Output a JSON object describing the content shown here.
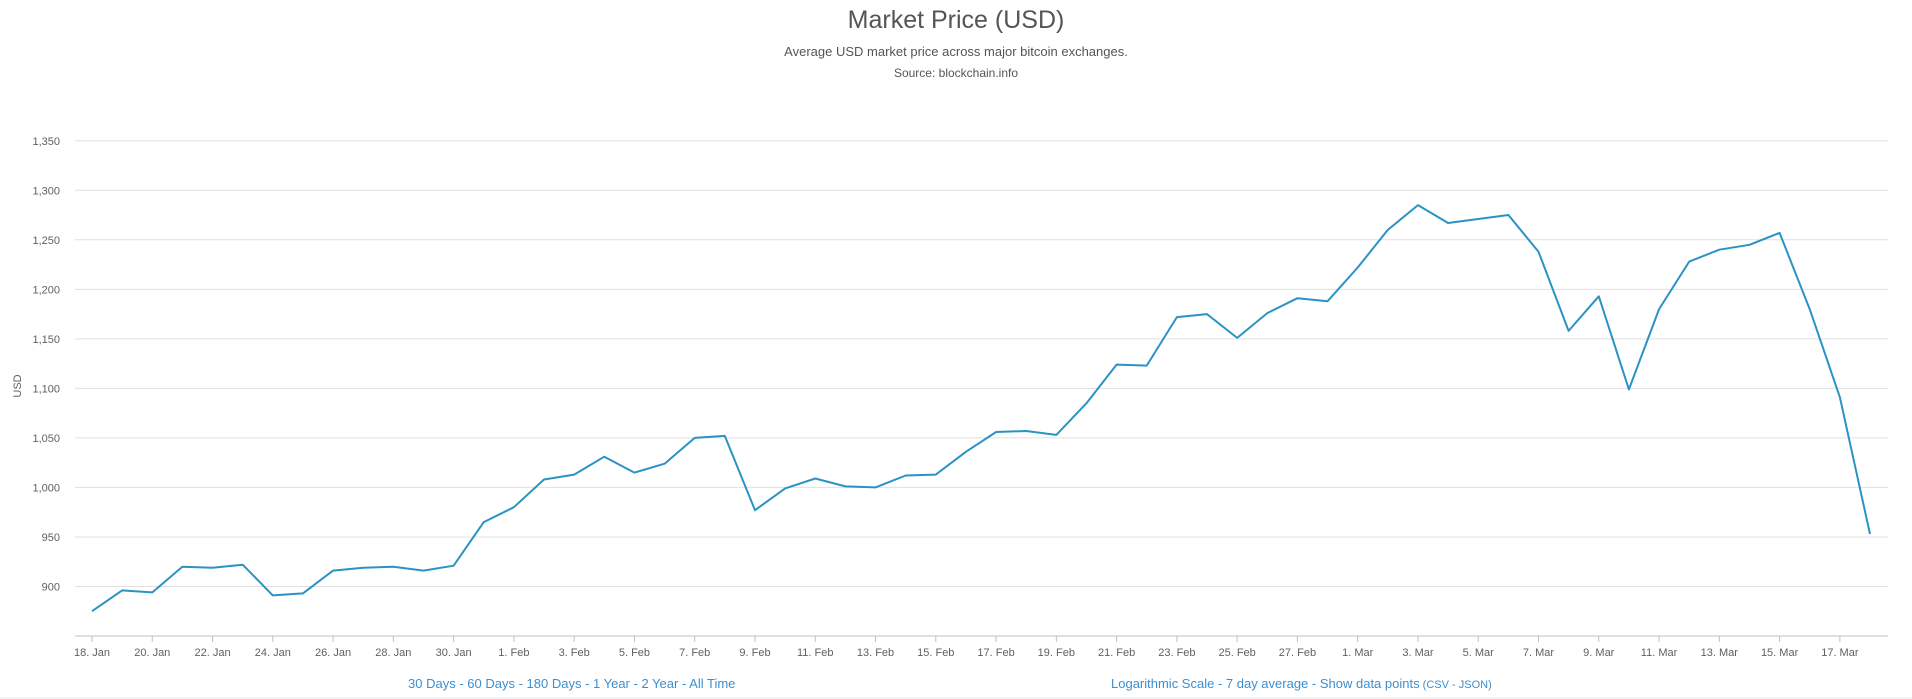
{
  "header": {
    "title": "Market Price (USD)",
    "subtitle": "Average USD market price across major bitcoin exchanges.",
    "source": "Source: blockchain.info"
  },
  "range_links": {
    "d30": "30 Days",
    "d60": "60 Days",
    "d180": "180 Days",
    "y1": "1 Year",
    "y2": "2 Year",
    "all": "All Time",
    "sep": " - "
  },
  "options_links": {
    "log": "Logarithmic Scale",
    "avg": "7 day average",
    "points": "Show data points",
    "csv": "CSV",
    "json": "JSON",
    "sep": " - ",
    "open_paren": " (",
    "close_paren": ")"
  },
  "colors": {
    "line": "#2a93c4",
    "grid": "#e0e0e0",
    "links": "#3b8fd1"
  },
  "chart_data": {
    "type": "line",
    "title": "Market Price (USD)",
    "subtitle": "Average USD market price across major bitcoin exchanges.",
    "ylabel": "USD",
    "xlabel": "",
    "ylim": [
      850,
      1375
    ],
    "grid": true,
    "yticks": [
      900,
      950,
      1000,
      1050,
      1100,
      1150,
      1200,
      1250,
      1300,
      1350
    ],
    "ytick_labels": [
      "900",
      "950",
      "1,000",
      "1,050",
      "1,100",
      "1,150",
      "1,200",
      "1,250",
      "1,300",
      "1,350"
    ],
    "xticks": [
      "2017-01-18",
      "2017-01-20",
      "2017-01-22",
      "2017-01-24",
      "2017-01-26",
      "2017-01-28",
      "2017-01-30",
      "2017-02-01",
      "2017-02-03",
      "2017-02-05",
      "2017-02-07",
      "2017-02-09",
      "2017-02-11",
      "2017-02-13",
      "2017-02-15",
      "2017-02-17",
      "2017-02-19",
      "2017-02-21",
      "2017-02-23",
      "2017-02-25",
      "2017-02-27",
      "2017-03-01",
      "2017-03-03",
      "2017-03-05",
      "2017-03-07",
      "2017-03-09",
      "2017-03-11",
      "2017-03-13",
      "2017-03-15",
      "2017-03-17"
    ],
    "xtick_labels": [
      "18. Jan",
      "20. Jan",
      "22. Jan",
      "24. Jan",
      "26. Jan",
      "28. Jan",
      "30. Jan",
      "1. Feb",
      "3. Feb",
      "5. Feb",
      "7. Feb",
      "9. Feb",
      "11. Feb",
      "13. Feb",
      "15. Feb",
      "17. Feb",
      "19. Feb",
      "21. Feb",
      "23. Feb",
      "25. Feb",
      "27. Feb",
      "1. Mar",
      "3. Mar",
      "5. Mar",
      "7. Mar",
      "9. Mar",
      "11. Mar",
      "13. Mar",
      "15. Mar",
      "17. Mar"
    ],
    "series": [
      {
        "x": [
          "2017-01-18",
          "2017-01-19",
          "2017-01-20",
          "2017-01-21",
          "2017-01-22",
          "2017-01-23",
          "2017-01-24",
          "2017-01-25",
          "2017-01-26",
          "2017-01-27",
          "2017-01-28",
          "2017-01-29",
          "2017-01-30",
          "2017-01-31",
          "2017-02-01",
          "2017-02-02",
          "2017-02-03",
          "2017-02-04",
          "2017-02-05",
          "2017-02-06",
          "2017-02-07",
          "2017-02-08",
          "2017-02-09",
          "2017-02-10",
          "2017-02-11",
          "2017-02-12",
          "2017-02-13",
          "2017-02-14",
          "2017-02-15",
          "2017-02-16",
          "2017-02-17",
          "2017-02-18",
          "2017-02-19",
          "2017-02-20",
          "2017-02-21",
          "2017-02-22",
          "2017-02-23",
          "2017-02-24",
          "2017-02-25",
          "2017-02-26",
          "2017-02-27",
          "2017-02-28",
          "2017-03-01",
          "2017-03-02",
          "2017-03-03",
          "2017-03-04",
          "2017-03-05",
          "2017-03-06",
          "2017-03-07",
          "2017-03-08",
          "2017-03-09",
          "2017-03-10",
          "2017-03-11",
          "2017-03-12",
          "2017-03-13",
          "2017-03-14",
          "2017-03-15",
          "2017-03-16",
          "2017-03-17",
          "2017-03-18"
        ],
        "y": [
          875,
          896,
          894,
          920,
          919,
          922,
          891,
          893,
          916,
          919,
          920,
          916,
          921,
          965,
          980,
          1008,
          1013,
          1031,
          1015,
          1024,
          1050,
          1052,
          977,
          999,
          1009,
          1001,
          1000,
          1012,
          1013,
          1036,
          1056,
          1057,
          1053,
          1085,
          1124,
          1123,
          1172,
          1175,
          1151,
          1176,
          1191,
          1188,
          1222,
          1260,
          1285,
          1267,
          1271,
          1275,
          1238,
          1158,
          1193,
          1099,
          1180,
          1228,
          1240,
          1245,
          1257,
          1180,
          1091,
          953
        ]
      }
    ]
  }
}
